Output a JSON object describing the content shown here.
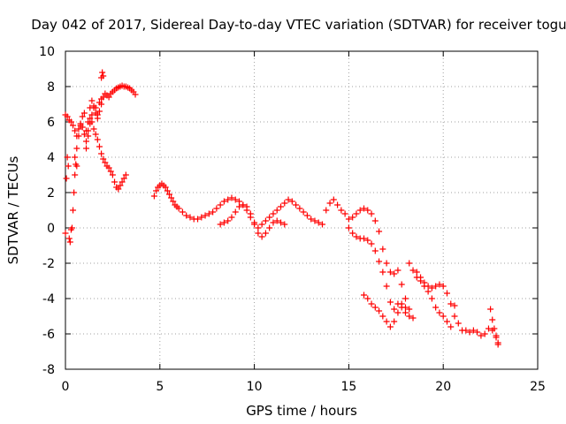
{
  "chart_data": {
    "type": "scatter",
    "title": "Day 042 of 2017, Sidereal Day-to-day VTEC variation (SDTVAR) for receiver togu",
    "xlabel": "GPS time / hours",
    "ylabel": "SDTVAR / TECUs",
    "xlim": [
      0,
      25
    ],
    "ylim": [
      -8,
      10
    ],
    "xticks": [
      0,
      5,
      10,
      15,
      20,
      25
    ],
    "yticks": [
      -8,
      -6,
      -4,
      -2,
      0,
      2,
      4,
      6,
      8,
      10
    ],
    "grid": true,
    "marker": "+",
    "color": "#ff0000",
    "series": [
      {
        "name": "seg1",
        "x": [
          0.0,
          0.05,
          0.1,
          0.15,
          0.2,
          0.25,
          0.3,
          0.35,
          0.4,
          0.45,
          0.5,
          0.55,
          0.6
        ],
        "y": [
          -0.3,
          2.8,
          4.0,
          3.5,
          -0.6,
          -0.8,
          -0.1,
          0.0,
          1.0,
          2.0,
          3.0,
          3.6,
          3.5
        ]
      },
      {
        "name": "seg2",
        "x": [
          0.0,
          0.1,
          0.2,
          0.3,
          0.4,
          0.5,
          0.6,
          0.7,
          0.8,
          0.9,
          1.0,
          1.1,
          1.2,
          1.3,
          1.4,
          1.5,
          1.6,
          1.7,
          1.8,
          1.9,
          2.0,
          2.1,
          2.2,
          2.3,
          2.4,
          2.5,
          2.6,
          2.7,
          2.8,
          2.9,
          3.0,
          3.1,
          3.2
        ],
        "y": [
          6.4,
          6.3,
          6.1,
          6.0,
          5.8,
          5.5,
          5.2,
          5.6,
          5.9,
          5.7,
          5.3,
          4.9,
          5.5,
          6.2,
          6.0,
          5.6,
          5.3,
          5.0,
          4.6,
          4.2,
          3.9,
          3.7,
          3.5,
          3.4,
          3.2,
          3.0,
          2.6,
          2.3,
          2.2,
          2.4,
          2.6,
          2.8,
          3.0
        ]
      },
      {
        "name": "seg3",
        "x": [
          0.5,
          0.6,
          0.7,
          0.8,
          0.9,
          1.0,
          1.1,
          1.2,
          1.3,
          1.4,
          1.5,
          1.6,
          1.7,
          1.8,
          1.9,
          2.0,
          2.1,
          2.2,
          2.3,
          2.4,
          2.5,
          2.6,
          2.7,
          2.8,
          2.9,
          3.0,
          3.1,
          3.2,
          3.3,
          3.4,
          3.5,
          3.6,
          3.7
        ],
        "y": [
          4.0,
          4.5,
          5.2,
          5.8,
          6.3,
          6.5,
          5.5,
          6.0,
          6.8,
          7.2,
          6.9,
          6.8,
          6.4,
          7.1,
          7.3,
          7.4,
          7.6,
          7.5,
          7.4,
          7.6,
          7.7,
          7.8,
          7.9,
          7.95,
          8.0,
          8.05,
          8.0,
          8.0,
          7.95,
          7.9,
          7.8,
          7.7,
          7.55
        ]
      },
      {
        "name": "seg4",
        "x": [
          1.9,
          1.95,
          2.0
        ],
        "y": [
          8.5,
          8.8,
          8.6
        ]
      },
      {
        "name": "seg5",
        "x": [
          1.1,
          1.2,
          1.3,
          1.4,
          1.5,
          1.6,
          1.7,
          1.8,
          1.9
        ],
        "y": [
          4.5,
          5.2,
          5.9,
          6.4,
          6.8,
          6.5,
          6.2,
          6.6,
          7.0
        ]
      },
      {
        "name": "seg6",
        "x": [
          4.7,
          4.8,
          4.9,
          5.0,
          5.1,
          5.2,
          5.3,
          5.4,
          5.5,
          5.6,
          5.7,
          5.8,
          5.9,
          6.0,
          6.2,
          6.4,
          6.6,
          6.8,
          7.0,
          7.2,
          7.4,
          7.6,
          7.8,
          8.0,
          8.2,
          8.4,
          8.6,
          8.8,
          9.0,
          9.2,
          9.4,
          9.6,
          9.8,
          10.0,
          10.2,
          10.4,
          10.6,
          10.8,
          11.0,
          11.2,
          11.4,
          11.6,
          11.8,
          12.0,
          12.2,
          12.4,
          12.6,
          12.8,
          13.0,
          13.2,
          13.4,
          13.6
        ],
        "y": [
          1.8,
          2.1,
          2.3,
          2.4,
          2.5,
          2.4,
          2.3,
          2.1,
          1.9,
          1.7,
          1.5,
          1.3,
          1.2,
          1.1,
          0.9,
          0.7,
          0.6,
          0.5,
          0.5,
          0.6,
          0.7,
          0.8,
          0.9,
          1.1,
          1.3,
          1.5,
          1.6,
          1.7,
          1.6,
          1.5,
          1.3,
          1.0,
          0.6,
          0.2,
          0.0,
          0.2,
          0.4,
          0.6,
          0.8,
          1.0,
          1.2,
          1.4,
          1.6,
          1.5,
          1.3,
          1.1,
          0.9,
          0.7,
          0.5,
          0.4,
          0.3,
          0.2
        ]
      },
      {
        "name": "seg7",
        "x": [
          8.2,
          8.4,
          8.6,
          8.8,
          9.0,
          9.2,
          9.4,
          9.6,
          9.8,
          10.0,
          10.2,
          10.4,
          10.6,
          10.8,
          11.0,
          11.2,
          11.4,
          11.6
        ],
        "y": [
          0.2,
          0.3,
          0.4,
          0.6,
          0.9,
          1.2,
          1.3,
          1.2,
          0.8,
          0.3,
          -0.3,
          -0.5,
          -0.3,
          0.0,
          0.3,
          0.4,
          0.3,
          0.2
        ]
      },
      {
        "name": "seg8",
        "x": [
          13.8,
          14.0,
          14.2,
          14.4,
          14.6,
          14.8,
          15.0,
          15.2,
          15.4,
          15.6,
          15.8,
          16.0,
          16.2,
          16.4,
          16.6,
          16.8,
          17.0,
          17.2,
          17.4,
          17.6,
          17.8,
          18.0,
          18.2,
          18.4
        ],
        "y": [
          1.0,
          1.4,
          1.6,
          1.3,
          1.0,
          0.8,
          0.5,
          0.6,
          0.8,
          1.0,
          1.1,
          1.0,
          0.8,
          0.4,
          -0.2,
          -1.2,
          -2.0,
          -2.5,
          -2.6,
          -2.4,
          -3.2,
          -4.0,
          -4.6,
          -5.1
        ]
      },
      {
        "name": "seg9",
        "x": [
          15.0,
          15.2,
          15.4,
          15.6,
          15.8,
          16.0,
          16.2,
          16.4,
          16.6,
          16.8,
          17.0,
          17.2,
          17.4,
          17.6,
          17.8,
          18.0,
          18.2
        ],
        "y": [
          0.0,
          -0.3,
          -0.5,
          -0.6,
          -0.6,
          -0.7,
          -0.9,
          -1.3,
          -1.9,
          -2.5,
          -3.3,
          -4.2,
          -4.6,
          -4.3,
          -4.5,
          -4.8,
          -5.0
        ]
      },
      {
        "name": "seg10",
        "x": [
          15.8,
          16.0,
          16.2,
          16.4,
          16.6,
          16.8,
          17.0,
          17.2,
          17.4,
          17.6,
          17.8,
          18.0
        ],
        "y": [
          -3.8,
          -4.0,
          -4.3,
          -4.5,
          -4.7,
          -5.0,
          -5.3,
          -5.6,
          -5.3,
          -4.8,
          -4.3,
          -4.5
        ]
      },
      {
        "name": "seg11",
        "x": [
          18.2,
          18.4,
          18.6,
          18.8,
          19.0,
          19.2,
          19.4,
          19.6,
          19.8,
          20.0,
          20.2,
          20.4
        ],
        "y": [
          -2.0,
          -2.4,
          -2.8,
          -3.0,
          -3.3,
          -3.6,
          -4.0,
          -4.5,
          -4.8,
          -5.0,
          -5.3,
          -5.6
        ]
      },
      {
        "name": "seg12",
        "x": [
          18.6,
          18.8,
          19.0,
          19.2,
          19.4,
          19.6,
          19.8,
          20.0,
          20.2,
          20.4,
          20.6
        ],
        "y": [
          -2.5,
          -2.8,
          -3.1,
          -3.3,
          -3.4,
          -3.3,
          -3.2,
          -3.3,
          -3.7,
          -4.3,
          -5.0
        ]
      },
      {
        "name": "seg13",
        "x": [
          20.6,
          20.8,
          21.0,
          21.2,
          21.4,
          21.6,
          21.8,
          22.0,
          22.2,
          22.4,
          22.6,
          22.8,
          22.9
        ],
        "y": [
          -4.4,
          -5.4,
          -5.8,
          -5.8,
          -5.9,
          -5.8,
          -5.9,
          -6.1,
          -6.0,
          -5.7,
          -5.8,
          -6.2,
          -6.5
        ]
      },
      {
        "name": "seg14",
        "x": [
          22.5,
          22.6,
          22.7,
          22.8,
          22.9
        ],
        "y": [
          -4.6,
          -5.2,
          -5.7,
          -6.1,
          -6.6
        ]
      }
    ]
  }
}
